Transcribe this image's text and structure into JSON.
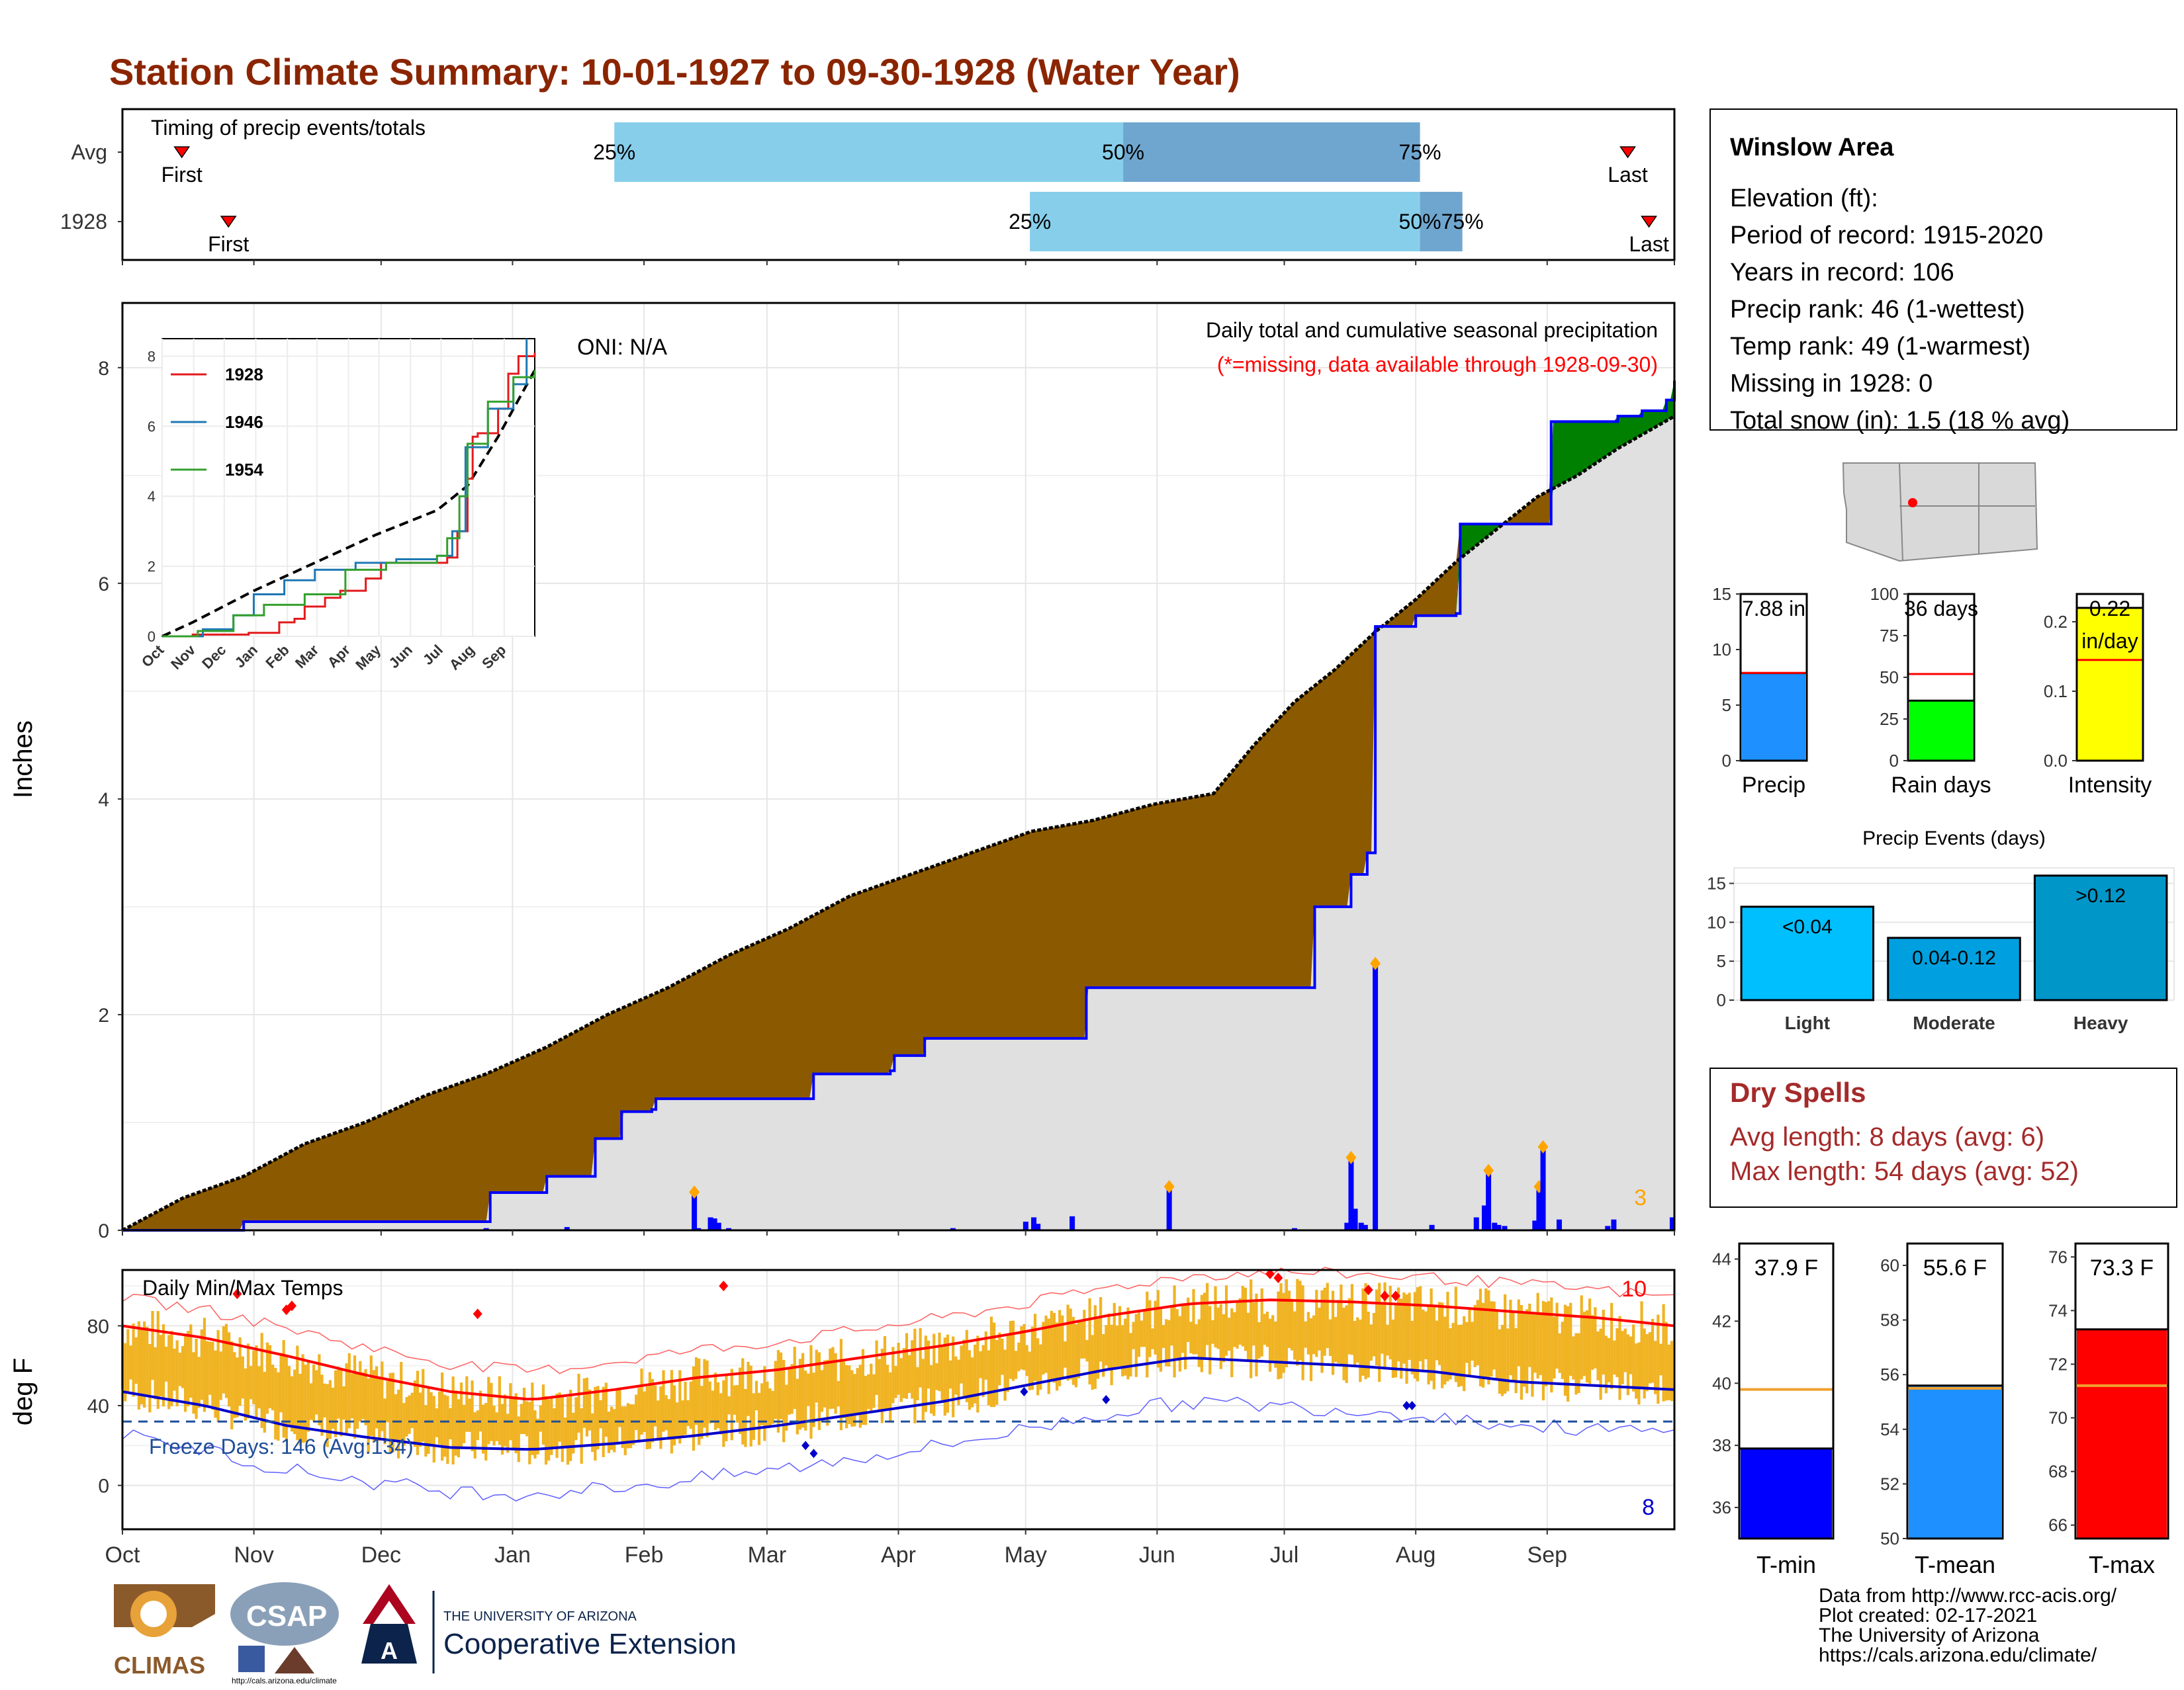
{
  "title": "Station Climate Summary: 10-01-1927 to 09-30-1928 (Water Year)",
  "months": [
    "Oct",
    "Nov",
    "Dec",
    "Jan",
    "Feb",
    "Mar",
    "Apr",
    "May",
    "Jun",
    "Jul",
    "Aug",
    "Sep"
  ],
  "colors": {
    "title": "#8b2500",
    "brown": "#8b5a00",
    "green": "#008000",
    "blue": "#0000ff",
    "gray": "#e0e0e0",
    "orange": "#f0b323",
    "red": "#ff0000",
    "lightblue": "#87ceeb",
    "midblue": "#6fa6cf"
  },
  "timing": {
    "label": "Timing of precip events/totals",
    "rows": [
      {
        "name": "Avg",
        "first_doy": 14,
        "q25_doy": 116,
        "q50_doy": 236,
        "q75_doy": 306,
        "last_doy": 355,
        "p25": "25%",
        "p50": "50%",
        "p75": "75%",
        "first": "First",
        "last": "Last"
      },
      {
        "name": "1928",
        "first_doy": 25,
        "q25_doy": 214,
        "q50_doy": 306,
        "q75_doy": 316,
        "last_doy": 360,
        "p25": "25%",
        "p50": "50%",
        "p75": "75%",
        "first": "First",
        "last": "Last"
      }
    ]
  },
  "precip_panel": {
    "ylabel": "Inches",
    "oni": "ONI: N/A",
    "subtitle": "Daily total and cumulative seasonal precipitation",
    "missing_note": "(*=missing, data available through 1928-09-30)",
    "count_label": "3",
    "ylim": [
      0,
      8.6
    ]
  },
  "inset": {
    "series": [
      {
        "name": "1928",
        "color": "#e31a1c"
      },
      {
        "name": "1946",
        "color": "#1f78b4"
      },
      {
        "name": "1954",
        "color": "#33a02c"
      }
    ],
    "ylim": [
      0,
      8.5
    ]
  },
  "temp_panel": {
    "ylabel": "deg F",
    "label": "Daily Min/Max Temps",
    "freeze": "Freeze Days: 146 (Avg:134)",
    "hot_count": "10",
    "cold_count": "8",
    "ylim": [
      -22,
      108
    ]
  },
  "info": {
    "station": "Winslow Area",
    "lines": [
      "Elevation (ft):",
      "Period of record: 1915-2020",
      "Years in record: 106",
      "Precip rank: 46 (1-wettest)",
      "Temp rank: 49 (1-warmest)",
      "Missing in 1928: 0",
      "Total snow (in): 1.5 (18 % avg)"
    ]
  },
  "mini_bars": [
    {
      "key": "precip",
      "label": "Precip",
      "value": 7.88,
      "avg": 7.9,
      "ymax": 15,
      "ticks": [
        0,
        5,
        10,
        15
      ],
      "value_label": "7.88 in",
      "color": "#1e90ff"
    },
    {
      "key": "raindays",
      "label": "Rain days",
      "value": 36,
      "avg": 52,
      "ymax": 100,
      "ticks": [
        0,
        25,
        50,
        75,
        100
      ],
      "value_label": "36 days",
      "color": "#00ff00"
    },
    {
      "key": "intensity",
      "label": "Intensity",
      "value": 0.22,
      "avg": 0.145,
      "ymax": 0.24,
      "ticks": [
        0.0,
        0.1,
        0.2
      ],
      "value_label": "0.22",
      "value_label2": "in/day",
      "color": "#ffff00"
    }
  ],
  "events": {
    "title": "Precip Events (days)",
    "categories": [
      "Light",
      "Moderate",
      "Heavy"
    ],
    "values": [
      12,
      8,
      16
    ],
    "labels": [
      "<0.04",
      "0.04-0.12",
      ">0.12"
    ],
    "colors": [
      "#00bfff",
      "#00a0e0",
      "#0096c8"
    ],
    "ticks": [
      0,
      5,
      10,
      15
    ]
  },
  "dry_spells": {
    "title": "Dry Spells",
    "avg_length": "Avg length: 8 days (avg: 6)",
    "max_length": "Max length: 54 days (avg: 52)"
  },
  "temp_bars": [
    {
      "label": "T-min",
      "value": 37.9,
      "avg": 39.8,
      "ylim": [
        35,
        44.5
      ],
      "ticks": [
        36,
        38,
        40,
        42,
        44
      ],
      "value_label": "37.9 F",
      "color": "#0000ff"
    },
    {
      "label": "T-mean",
      "value": 55.6,
      "avg": 55.5,
      "ylim": [
        50,
        60.8
      ],
      "ticks": [
        50,
        52,
        54,
        56,
        58,
        60
      ],
      "value_label": "55.6 F",
      "color": "#1e90ff"
    },
    {
      "label": "T-max",
      "value": 73.3,
      "avg": 71.2,
      "ylim": [
        65.5,
        76.5
      ],
      "ticks": [
        66,
        68,
        70,
        72,
        74,
        76
      ],
      "value_label": "73.3 F",
      "color": "#ff0000"
    }
  ],
  "footer": {
    "lines": [
      "Data from http://www.rcc-acis.org/",
      "Plot created: 02-17-2021",
      "The University of Arizona",
      "https://cals.arizona.edu/climate/"
    ],
    "climas": "CLIMAS",
    "csap": "CSAP",
    "csap_url": "http://cals.arizona.edu/climate",
    "ua_small": "THE UNIVERSITY OF ARIZONA",
    "ua_big": "Cooperative Extension"
  },
  "chart_data": {
    "type": "area",
    "x_unit": "day of water year (0 = Oct 1)",
    "cumulative_1928": [
      [
        0,
        0
      ],
      [
        60,
        0.08
      ],
      [
        180,
        0.08
      ],
      [
        182,
        0.35
      ],
      [
        210,
        0.5
      ],
      [
        222,
        0.5
      ],
      [
        234,
        0.85
      ],
      [
        245,
        0.85
      ],
      [
        247,
        1.1
      ],
      [
        262,
        1.12
      ],
      [
        264,
        1.22
      ],
      [
        340,
        1.22
      ],
      [
        342,
        1.45
      ],
      [
        380,
        1.48
      ],
      [
        382,
        1.62
      ],
      [
        395,
        1.62
      ],
      [
        397,
        1.78
      ],
      [
        475,
        1.78
      ],
      [
        477,
        2.25
      ],
      [
        588,
        2.25
      ],
      [
        590,
        3.0
      ],
      [
        606,
        3.0
      ],
      [
        608,
        3.3
      ],
      [
        616,
        3.5
      ],
      [
        620,
        5.6
      ],
      [
        638,
        5.6
      ],
      [
        640,
        5.7
      ],
      [
        660,
        5.72
      ],
      [
        662,
        6.55
      ],
      [
        705,
        6.55
      ],
      [
        707,
        7.5
      ],
      [
        728,
        7.5
      ],
      [
        740,
        7.55
      ],
      [
        752,
        7.6
      ],
      [
        764,
        7.7
      ],
      [
        768,
        7.88
      ]
    ],
    "cumulative_avg": [
      [
        0,
        0
      ],
      [
        30,
        0.3
      ],
      [
        60,
        0.5
      ],
      [
        90,
        0.8
      ],
      [
        120,
        1.0
      ],
      [
        150,
        1.25
      ],
      [
        180,
        1.45
      ],
      [
        210,
        1.7
      ],
      [
        240,
        2.0
      ],
      [
        270,
        2.25
      ],
      [
        300,
        2.55
      ],
      [
        330,
        2.8
      ],
      [
        360,
        3.1
      ],
      [
        390,
        3.3
      ],
      [
        420,
        3.5
      ],
      [
        450,
        3.7
      ],
      [
        480,
        3.8
      ],
      [
        510,
        3.95
      ],
      [
        540,
        4.05
      ],
      [
        560,
        4.5
      ],
      [
        580,
        4.9
      ],
      [
        600,
        5.2
      ],
      [
        620,
        5.55
      ],
      [
        640,
        5.85
      ],
      [
        660,
        6.2
      ],
      [
        680,
        6.5
      ],
      [
        700,
        6.8
      ],
      [
        720,
        7.0
      ],
      [
        740,
        7.25
      ],
      [
        768,
        7.55
      ]
    ],
    "daily_precip": [
      [
        59,
        0.01
      ],
      [
        180,
        0.02
      ],
      [
        220,
        0.03
      ],
      [
        283,
        0.33
      ],
      [
        285,
        0.02
      ],
      [
        291,
        0.12
      ],
      [
        293,
        0.11
      ],
      [
        295,
        0.07
      ],
      [
        300,
        0.02
      ],
      [
        411,
        0.02
      ],
      [
        447,
        0.08
      ],
      [
        451,
        0.12
      ],
      [
        453,
        0.06
      ],
      [
        470,
        0.13
      ],
      [
        518,
        0.38
      ],
      [
        580,
        0.02
      ],
      [
        606,
        0.07
      ],
      [
        608,
        0.65
      ],
      [
        610,
        0.2
      ],
      [
        613,
        0.07
      ],
      [
        615,
        0.05
      ],
      [
        648,
        0.05
      ],
      [
        670,
        0.12
      ],
      [
        674,
        0.23
      ],
      [
        676,
        0.53
      ],
      [
        679,
        0.07
      ],
      [
        681,
        0.05
      ],
      [
        684,
        0.04
      ],
      [
        699,
        0.09
      ],
      [
        701,
        0.38
      ],
      [
        711,
        0.1
      ],
      [
        735,
        0.04
      ],
      [
        738,
        0.1
      ],
      [
        767,
        0.12
      ],
      [
        620,
        2.45
      ],
      [
        703,
        0.75
      ]
    ],
    "temp_max_avg": [
      [
        0,
        80
      ],
      [
        30,
        74
      ],
      [
        60,
        65
      ],
      [
        90,
        55
      ],
      [
        120,
        47
      ],
      [
        150,
        43
      ],
      [
        180,
        48
      ],
      [
        210,
        54
      ],
      [
        240,
        58
      ],
      [
        270,
        64
      ],
      [
        300,
        70
      ],
      [
        330,
        77
      ],
      [
        360,
        85
      ],
      [
        390,
        91
      ],
      [
        420,
        93
      ],
      [
        450,
        92
      ],
      [
        480,
        90
      ],
      [
        510,
        87
      ],
      [
        540,
        84
      ],
      [
        568,
        80
      ]
    ],
    "temp_min_avg": [
      [
        0,
        47
      ],
      [
        30,
        40
      ],
      [
        60,
        30
      ],
      [
        90,
        24
      ],
      [
        120,
        19
      ],
      [
        150,
        18
      ],
      [
        180,
        21
      ],
      [
        210,
        25
      ],
      [
        240,
        30
      ],
      [
        270,
        36
      ],
      [
        300,
        42
      ],
      [
        330,
        50
      ],
      [
        360,
        58
      ],
      [
        390,
        64
      ],
      [
        420,
        62
      ],
      [
        450,
        60
      ],
      [
        480,
        57
      ],
      [
        510,
        52
      ],
      [
        540,
        50
      ],
      [
        568,
        48
      ]
    ]
  }
}
